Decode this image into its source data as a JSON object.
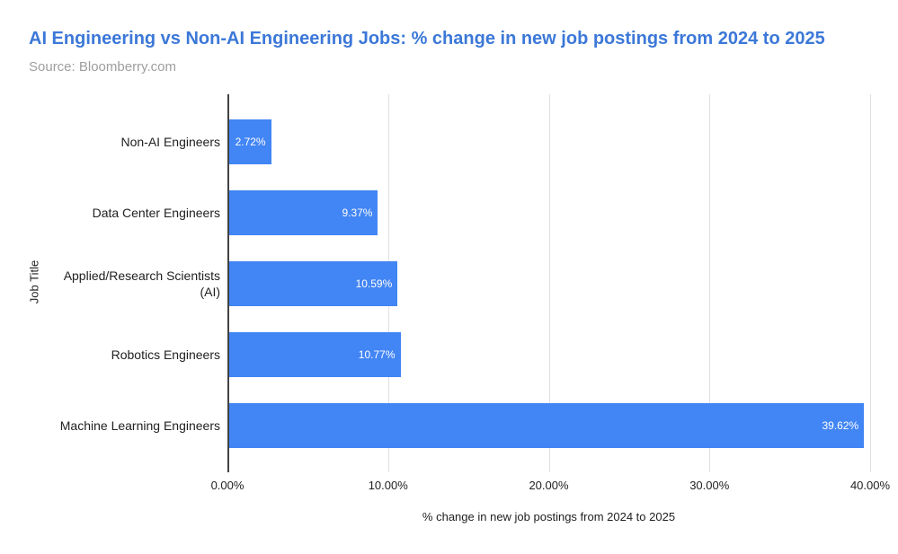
{
  "header": {
    "title": "AI Engineering vs Non-AI Engineering Jobs: % change in new job postings from 2024 to 2025",
    "source": "Source: Bloomberry.com"
  },
  "colors": {
    "bar": "#4285f4",
    "title_text": "#3c78d8",
    "source_text": "#9e9e9e",
    "axis_text": "#212121",
    "gridline": "#e0e0e0",
    "axis_line": "#424242",
    "value_label": "#ffffff"
  },
  "chart_data": {
    "type": "bar",
    "orientation": "horizontal",
    "title": "AI Engineering vs Non-AI Engineering Jobs: % change in new job postings from 2024 to 2025",
    "subtitle": "Source: Bloomberry.com",
    "categories": [
      "Non-AI Engineers",
      "Data Center Engineers",
      "Applied/Research Scientists\n(AI)",
      "Robotics Engineers",
      "Machine Learning Engineers"
    ],
    "values": [
      2.72,
      9.37,
      10.59,
      10.77,
      39.62
    ],
    "value_labels": [
      "2.72%",
      "9.37%",
      "10.59%",
      "10.77%",
      "39.62%"
    ],
    "xlabel": "% change in new job postings from 2024 to 2025",
    "ylabel": "Job Title",
    "xlim": [
      0,
      40
    ],
    "xticks": [
      0,
      10,
      20,
      30,
      40
    ],
    "xtick_labels": [
      "0.00%",
      "10.00%",
      "20.00%",
      "30.00%",
      "40.00%"
    ],
    "grid": true,
    "legend": "none"
  }
}
